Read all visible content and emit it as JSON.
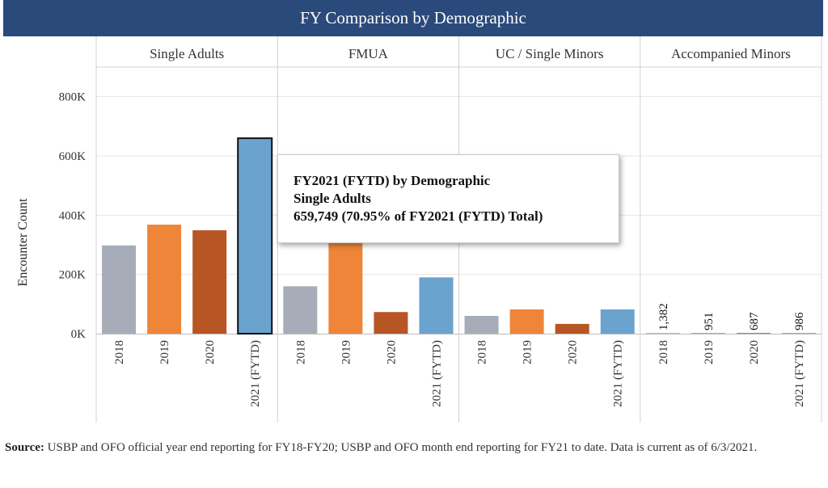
{
  "title": "FY Comparison by Demographic",
  "tooltip": {
    "line1": "FY2021 (FYTD) by Demographic",
    "line2": "Single Adults",
    "line3": "659,749 (70.95% of FY2021 (FYTD) Total)"
  },
  "source": {
    "label": "Source:",
    "text": "USBP and OFO official year end reporting for FY18-FY20; USBP and OFO month end reporting for FY21 to date. Data is current as of 6/3/2021."
  },
  "colors": {
    "title_bar": "#2a4a7b",
    "2018": "#a7adb8",
    "2019": "#ee8538",
    "2020": "#b75624",
    "2021 (FYTD)": "#6ba3cf",
    "grid": "#e6e6e6",
    "divider": "#d0d0d0"
  },
  "chart_data": {
    "type": "bar",
    "title": "FY Comparison by Demographic",
    "ylabel": "Encounter Count",
    "xlabel": "",
    "ylim": [
      0,
      900000
    ],
    "yticks": [
      0,
      200000,
      400000,
      600000,
      800000
    ],
    "ytick_labels": [
      "0K",
      "200K",
      "400K",
      "600K",
      "800K"
    ],
    "grid": true,
    "categories": [
      "2018",
      "2019",
      "2020",
      "2021 (FYTD)"
    ],
    "panels": [
      {
        "name": "Single Adults",
        "values": [
          298000,
          368000,
          349000,
          659749
        ],
        "show_labels": false,
        "highlight": 3
      },
      {
        "name": "FMUA",
        "values": [
          160000,
          310000,
          73000,
          190000
        ],
        "show_labels": false
      },
      {
        "name": "UC / Single Minors",
        "values": [
          60000,
          82000,
          33000,
          82000
        ],
        "show_labels": false
      },
      {
        "name": "Accompanied Minors",
        "values": [
          1382,
          951,
          687,
          986
        ],
        "value_labels": [
          "1,382",
          "951",
          "687",
          "986"
        ],
        "show_labels": true
      }
    ]
  }
}
